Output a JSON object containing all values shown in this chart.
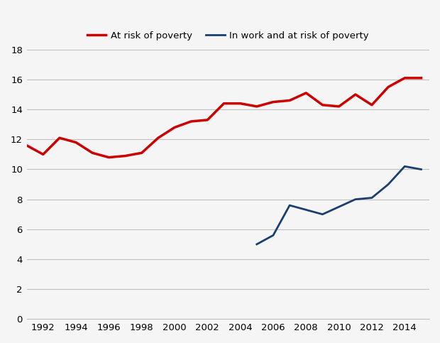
{
  "red_series": {
    "label": "At risk of poverty",
    "color": "#cc0000",
    "linewidth": 2.5,
    "x": [
      1991,
      1992,
      1993,
      1994,
      1995,
      1996,
      1997,
      1998,
      1999,
      2000,
      2001,
      2002,
      2003,
      2004,
      2005,
      2006,
      2007,
      2008,
      2009,
      2010,
      2011,
      2012,
      2013,
      2014,
      2015
    ],
    "y": [
      11.6,
      11.0,
      12.1,
      11.8,
      11.1,
      10.8,
      10.9,
      11.1,
      12.1,
      12.8,
      13.2,
      13.3,
      14.4,
      14.4,
      14.2,
      14.5,
      14.6,
      15.1,
      14.3,
      14.2,
      15.0,
      14.3,
      15.5,
      16.1,
      16.1
    ]
  },
  "blue_series": {
    "label": "In work and at risk of poverty",
    "color": "#1a3f6f",
    "linewidth": 2.0,
    "x": [
      2005,
      2006,
      2007,
      2008,
      2009,
      2010,
      2011,
      2012,
      2013,
      2014,
      2015
    ],
    "y": [
      5.0,
      5.6,
      7.6,
      7.3,
      7.0,
      7.5,
      8.0,
      8.1,
      9.0,
      10.2,
      10.0
    ]
  },
  "xlim": [
    1991,
    2015.5
  ],
  "ylim": [
    0,
    18
  ],
  "yticks": [
    0,
    2,
    4,
    6,
    8,
    10,
    12,
    14,
    16,
    18
  ],
  "xticks": [
    1992,
    1994,
    1996,
    1998,
    2000,
    2002,
    2004,
    2006,
    2008,
    2010,
    2012,
    2014
  ],
  "grid_color": "#c0c0c0",
  "background_color": "#f5f5f5",
  "legend_fontsize": 9.5,
  "tick_fontsize": 9.5
}
